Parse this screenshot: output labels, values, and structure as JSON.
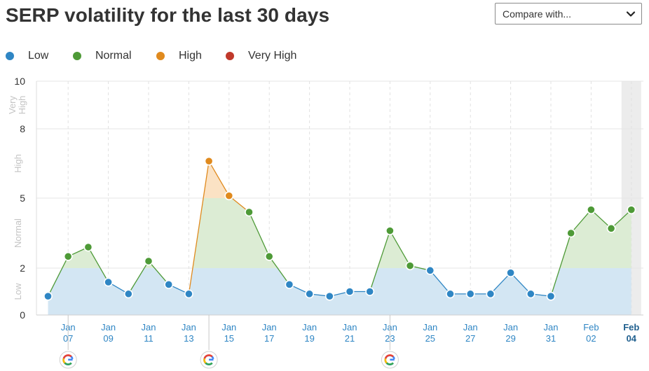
{
  "header": {
    "title": "SERP volatility for the last 30 days",
    "compare_label": "Compare with..."
  },
  "colors": {
    "low": "#2f86c4",
    "normal": "#4e9a37",
    "high": "#e08a1e",
    "very_high": "#c0392b",
    "low_fill": "#d3e6f3",
    "normal_fill": "#dcecd4",
    "high_fill": "#fbe2c4",
    "band_text": "#c4c4c4",
    "axis_tick": "#2f86c4"
  },
  "chart_data": {
    "type": "line",
    "title": "SERP volatility for the last 30 days",
    "legend": {
      "position": "top-left",
      "entries": [
        {
          "key": "low",
          "label": "Low",
          "color": "#2f86c4"
        },
        {
          "key": "normal",
          "label": "Normal",
          "color": "#4e9a37"
        },
        {
          "key": "high",
          "label": "High",
          "color": "#e08a1e"
        },
        {
          "key": "very_high",
          "label": "Very High",
          "color": "#c0392b"
        }
      ]
    },
    "ylim": [
      0,
      10
    ],
    "y_ticks": [
      0,
      2,
      5,
      8,
      10
    ],
    "y_bands": [
      {
        "label": "Low",
        "from": 0,
        "to": 2
      },
      {
        "label": "Normal",
        "from": 2,
        "to": 5
      },
      {
        "label": "High",
        "from": 5,
        "to": 8
      },
      {
        "label": "Very High",
        "from": 8,
        "to": 10
      }
    ],
    "x": [
      "Jan 06",
      "Jan 07",
      "Jan 08",
      "Jan 09",
      "Jan 10",
      "Jan 11",
      "Jan 12",
      "Jan 13",
      "Jan 14",
      "Jan 15",
      "Jan 16",
      "Jan 17",
      "Jan 18",
      "Jan 19",
      "Jan 20",
      "Jan 21",
      "Jan 22",
      "Jan 23",
      "Jan 24",
      "Jan 25",
      "Jan 26",
      "Jan 27",
      "Jan 28",
      "Jan 29",
      "Jan 30",
      "Jan 31",
      "Feb 01",
      "Feb 02",
      "Feb 03",
      "Feb 04"
    ],
    "values": [
      0.8,
      2.5,
      2.9,
      1.4,
      0.9,
      2.3,
      1.3,
      0.9,
      6.6,
      5.1,
      4.4,
      2.5,
      1.3,
      0.9,
      0.8,
      1.0,
      1.0,
      3.6,
      2.1,
      1.9,
      0.9,
      0.9,
      0.9,
      1.8,
      0.9,
      0.8,
      3.5,
      4.5,
      3.7,
      4.5
    ],
    "x_tick_labels": [
      {
        "index": 1,
        "month": "Jan",
        "day": "07"
      },
      {
        "index": 3,
        "month": "Jan",
        "day": "09"
      },
      {
        "index": 5,
        "month": "Jan",
        "day": "11"
      },
      {
        "index": 7,
        "month": "Jan",
        "day": "13"
      },
      {
        "index": 9,
        "month": "Jan",
        "day": "15"
      },
      {
        "index": 11,
        "month": "Jan",
        "day": "17"
      },
      {
        "index": 13,
        "month": "Jan",
        "day": "19"
      },
      {
        "index": 15,
        "month": "Jan",
        "day": "21"
      },
      {
        "index": 17,
        "month": "Jan",
        "day": "23"
      },
      {
        "index": 19,
        "month": "Jan",
        "day": "25"
      },
      {
        "index": 21,
        "month": "Jan",
        "day": "27"
      },
      {
        "index": 23,
        "month": "Jan",
        "day": "29"
      },
      {
        "index": 25,
        "month": "Jan",
        "day": "31"
      },
      {
        "index": 27,
        "month": "Feb",
        "day": "02"
      },
      {
        "index": 29,
        "month": "Feb",
        "day": "04"
      }
    ],
    "highlighted_index": 29,
    "google_update_markers": [
      1,
      8,
      17
    ],
    "grid": true
  }
}
